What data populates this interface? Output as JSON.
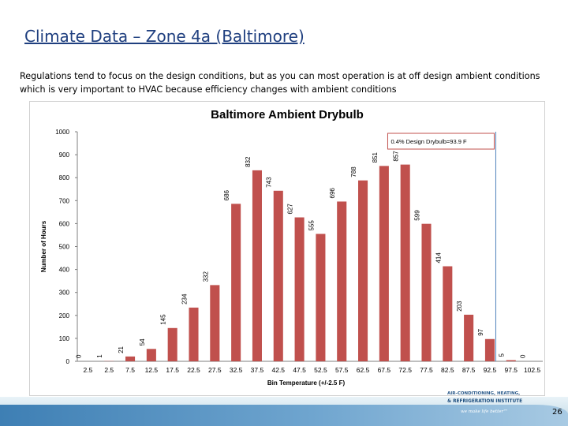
{
  "slide": {
    "title": "Climate Data – Zone 4a (Baltimore)",
    "subtitle": "Regulations tend to focus on the design conditions, but as you can most operation is at off design ambient conditions which is very important to HVAC because efficiency changes with ambient conditions",
    "page_number": "26"
  },
  "footer": {
    "org_line": "AIR-CONDITIONING, HEATING,",
    "org_name": "& REFRIGERATION INSTITUTE",
    "tagline": "we make life better™"
  },
  "colors": {
    "bar": "#c0504d",
    "title": "#1f3f7f",
    "marker": "#4f81bd",
    "annotation_border": "#c0504d"
  },
  "chart_data": {
    "type": "bar",
    "title": "Baltimore Ambient Drybulb",
    "xlabel": "Bin Temperature (+/-2.5 F)",
    "ylabel": "Number of Hours",
    "ylim": [
      0,
      1000
    ],
    "yticks": [
      "0",
      "100",
      "200",
      "300",
      "400",
      "500",
      "600",
      "700",
      "800",
      "900",
      "1000"
    ],
    "grid": false,
    "categories": [
      "2.5",
      "2.5",
      "7.5",
      "12.5",
      "17.5",
      "22.5",
      "27.5",
      "32.5",
      "37.5",
      "42.5",
      "47.5",
      "52.5",
      "57.5",
      "62.5",
      "67.5",
      "72.5",
      "77.5",
      "82.5",
      "87.5",
      "92.5",
      "97.5",
      "102.5"
    ],
    "values": [
      0,
      1,
      21,
      54,
      145,
      234,
      332,
      686,
      832,
      743,
      627,
      555,
      696,
      788,
      851,
      857,
      599,
      414,
      203,
      97,
      5,
      0
    ],
    "data_labels": [
      "0",
      "1",
      "21",
      "54",
      "145",
      "234",
      "332",
      "686",
      "832",
      "743",
      "627",
      "555",
      "696",
      "788",
      "851",
      "857",
      "599",
      "414",
      "203",
      "97",
      "5",
      "0"
    ],
    "annotation": {
      "text": "0.4% Design Drybulb=93.9 F",
      "value": 93.9
    }
  }
}
